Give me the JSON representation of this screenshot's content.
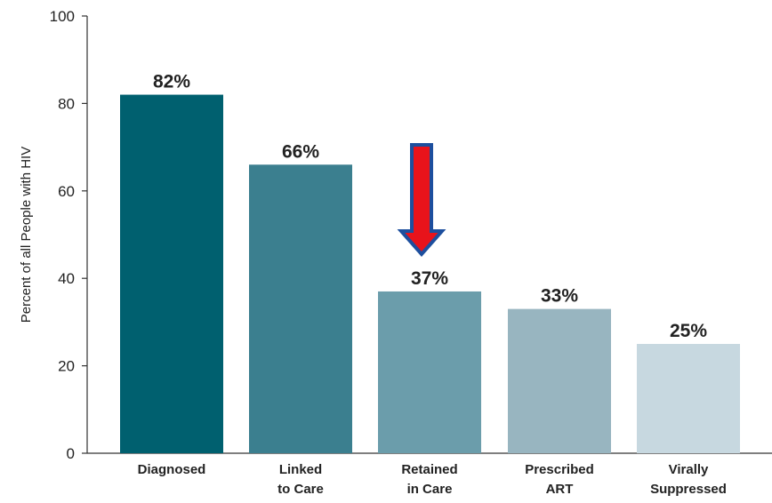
{
  "chart_data": {
    "type": "bar",
    "categories": [
      [
        "Diagnosed"
      ],
      [
        "Linked",
        "to Care"
      ],
      [
        "Retained",
        "in Care"
      ],
      [
        "Prescribed",
        "ART"
      ],
      [
        "Virally",
        "Suppressed"
      ]
    ],
    "values": [
      82,
      66,
      37,
      33,
      25
    ],
    "data_labels": [
      "82%",
      "66%",
      "37%",
      "33%",
      "25%"
    ],
    "bar_colors": [
      "#00606f",
      "#3b7f8f",
      "#6b9dab",
      "#98b5c0",
      "#c7d8e0"
    ],
    "ylabel": "Percent of all People with HIV",
    "ylim": [
      0,
      100
    ],
    "yticks": [
      0,
      20,
      40,
      60,
      80,
      100
    ],
    "grid": false,
    "legend": "none",
    "annotation": {
      "type": "arrow",
      "direction": "down",
      "points_to_category": "Retained in Care",
      "fill_color": "#e8131b",
      "outline_color": "#1d4f9e"
    }
  }
}
